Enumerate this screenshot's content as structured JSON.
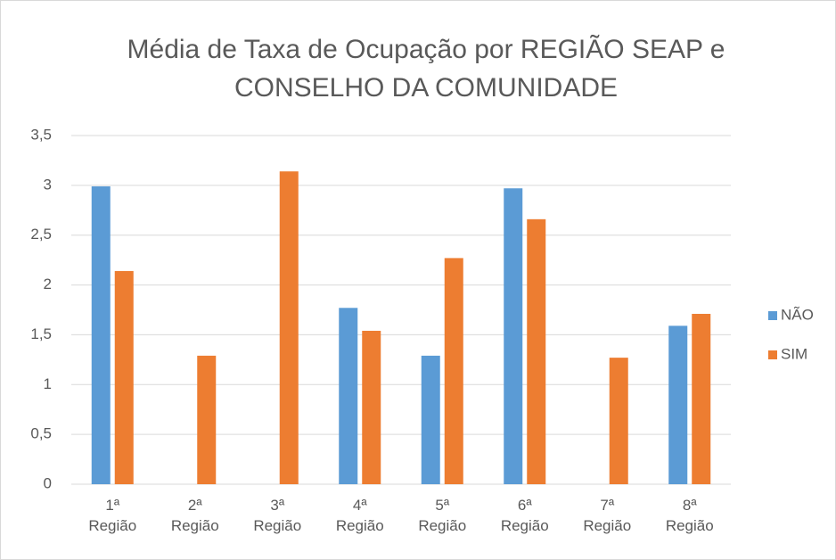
{
  "chart_data": {
    "type": "bar",
    "title": "Média de Taxa de Ocupação por REGIÃO SEAP e CONSELHO DA COMUNIDADE",
    "categories": [
      "1ª Região",
      "2ª Região",
      "3ª Região",
      "4ª Região",
      "5ª Região",
      "6ª Região",
      "7ª Região",
      "8ª Região"
    ],
    "series": [
      {
        "name": "NÃO",
        "color": "#5b9bd5",
        "values": [
          2.99,
          null,
          null,
          1.77,
          1.29,
          2.97,
          null,
          1.59
        ]
      },
      {
        "name": "SIM",
        "color": "#ed7d31",
        "values": [
          2.14,
          1.29,
          3.14,
          1.54,
          2.27,
          2.66,
          1.27,
          1.71
        ]
      }
    ],
    "ylim": [
      0,
      3.5
    ],
    "yticks": [
      0,
      {
        "value": 0.5,
        "label": "0,5"
      },
      1,
      {
        "value": 1.5,
        "label": "1,5"
      },
      2,
      {
        "value": 2.5,
        "label": "2,5"
      },
      3,
      {
        "value": 3.5,
        "label": "3,5"
      }
    ],
    "grid": true,
    "legend": "right"
  }
}
